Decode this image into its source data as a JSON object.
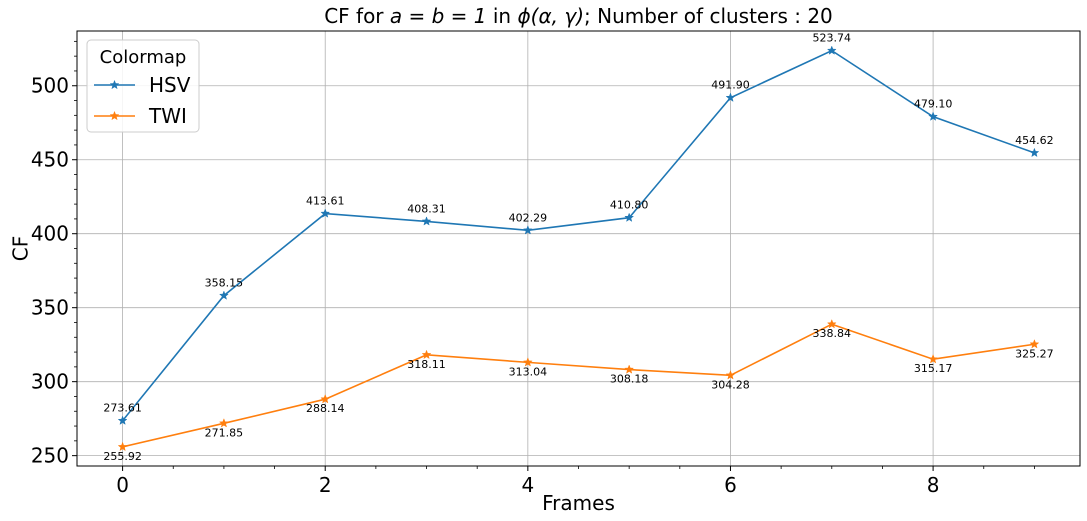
{
  "chart_data": {
    "type": "line",
    "title": "CF for a = b = 1 in ϕ(α, γ); Number of clusters : 20",
    "xlabel": "Frames",
    "ylabel": "CF",
    "x": [
      0,
      1,
      2,
      3,
      4,
      5,
      6,
      7,
      8,
      9
    ],
    "xlim": [
      -0.45,
      9.45
    ],
    "ylim": [
      243,
      537
    ],
    "xticks": [
      0,
      2,
      4,
      6,
      8
    ],
    "yticks": [
      250,
      300,
      350,
      400,
      450,
      500
    ],
    "grid": true,
    "legend": {
      "title": "Colormap",
      "position": "top-left"
    },
    "series": [
      {
        "name": "HSV",
        "color": "#1f77b4",
        "marker": "star",
        "values": [
          273.61,
          358.15,
          413.61,
          408.31,
          402.29,
          410.8,
          491.9,
          523.74,
          479.1,
          454.62
        ],
        "labels": [
          "273.61",
          "358.15",
          "413.61",
          "408.31",
          "402.29",
          "410.80",
          "491.90",
          "523.74",
          "479.10",
          "454.62"
        ],
        "label_placement": "above"
      },
      {
        "name": "TWI",
        "color": "#ff7f0e",
        "marker": "star",
        "values": [
          255.92,
          271.85,
          288.14,
          318.11,
          313.04,
          308.18,
          304.28,
          338.84,
          315.17,
          325.27
        ],
        "labels": [
          "255.92",
          "271.85",
          "288.14",
          "318.11",
          "313.04",
          "308.18",
          "304.28",
          "338.84",
          "315.17",
          "325.27"
        ],
        "label_placement": "below"
      }
    ]
  }
}
